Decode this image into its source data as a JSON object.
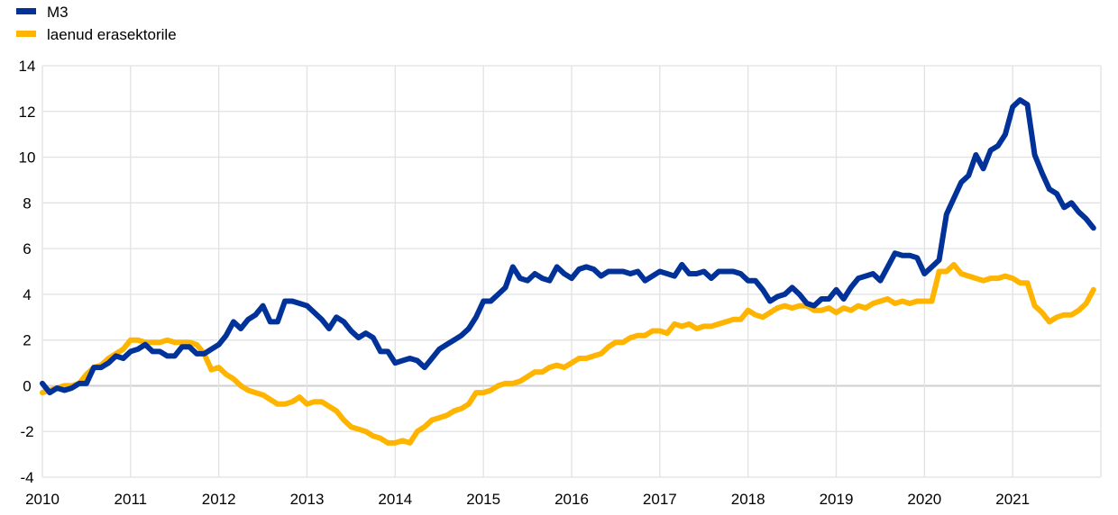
{
  "chart_data": {
    "type": "line",
    "title": "",
    "xlabel": "",
    "ylabel": "",
    "ylim": [
      -4,
      14
    ],
    "yticks": [
      "14",
      "12",
      "10",
      "8",
      "6",
      "4",
      "2",
      "0",
      "-2",
      "-4"
    ],
    "xticks": [
      "2010",
      "2011",
      "2012",
      "2013",
      "2014",
      "2015",
      "2016",
      "2017",
      "2018",
      "2019",
      "2020",
      "2021"
    ],
    "xrange": [
      "2010-01",
      "2022-01"
    ],
    "frequency": "monthly",
    "start": "2010-01",
    "grid": true,
    "legend_position": "top-left",
    "series": [
      {
        "name": "M3",
        "color": "#003299",
        "values": [
          0.1,
          -0.3,
          -0.1,
          -0.2,
          -0.1,
          0.1,
          0.1,
          0.8,
          0.8,
          1.0,
          1.3,
          1.2,
          1.5,
          1.6,
          1.8,
          1.5,
          1.5,
          1.3,
          1.3,
          1.7,
          1.7,
          1.4,
          1.4,
          1.6,
          1.8,
          2.2,
          2.8,
          2.5,
          2.9,
          3.1,
          3.5,
          2.8,
          2.8,
          3.7,
          3.7,
          3.6,
          3.5,
          3.2,
          2.9,
          2.5,
          3.0,
          2.8,
          2.4,
          2.1,
          2.3,
          2.1,
          1.5,
          1.5,
          1.0,
          1.1,
          1.2,
          1.1,
          0.8,
          1.2,
          1.6,
          1.8,
          2.0,
          2.2,
          2.5,
          3.0,
          3.7,
          3.7,
          4.0,
          4.3,
          5.2,
          4.7,
          4.6,
          4.9,
          4.7,
          4.6,
          5.2,
          4.9,
          4.7,
          5.1,
          5.2,
          5.1,
          4.8,
          5.0,
          5.0,
          5.0,
          4.9,
          5.0,
          4.6,
          4.8,
          5.0,
          4.9,
          4.8,
          5.3,
          4.9,
          4.9,
          5.0,
          4.7,
          5.0,
          5.0,
          5.0,
          4.9,
          4.6,
          4.6,
          4.2,
          3.7,
          3.9,
          4.0,
          4.3,
          4.0,
          3.6,
          3.5,
          3.8,
          3.8,
          4.2,
          3.8,
          4.3,
          4.7,
          4.8,
          4.9,
          4.6,
          5.2,
          5.8,
          5.7,
          5.7,
          5.6,
          4.9,
          5.2,
          5.5,
          7.5,
          8.2,
          8.9,
          9.2,
          10.1,
          9.5,
          10.3,
          10.5,
          11.0,
          12.2,
          12.5,
          12.3,
          10.1,
          9.3,
          8.6,
          8.4,
          7.8,
          8.0,
          7.6,
          7.3,
          6.9
        ]
      },
      {
        "name": "laenud erasektorile",
        "color": "#FFB400",
        "values": [
          -0.3,
          -0.2,
          -0.1,
          0.0,
          0.0,
          0.1,
          0.5,
          0.8,
          0.9,
          1.2,
          1.4,
          1.6,
          2.0,
          2.0,
          1.9,
          1.9,
          1.9,
          2.0,
          1.9,
          1.9,
          1.9,
          1.8,
          1.4,
          0.7,
          0.8,
          0.5,
          0.3,
          0.0,
          -0.2,
          -0.3,
          -0.4,
          -0.6,
          -0.8,
          -0.8,
          -0.7,
          -0.5,
          -0.8,
          -0.7,
          -0.7,
          -0.9,
          -1.1,
          -1.5,
          -1.8,
          -1.9,
          -2.0,
          -2.2,
          -2.3,
          -2.5,
          -2.5,
          -2.4,
          -2.5,
          -2.0,
          -1.8,
          -1.5,
          -1.4,
          -1.3,
          -1.1,
          -1.0,
          -0.8,
          -0.3,
          -0.3,
          -0.2,
          0.0,
          0.1,
          0.1,
          0.2,
          0.4,
          0.6,
          0.6,
          0.8,
          0.9,
          0.8,
          1.0,
          1.2,
          1.2,
          1.3,
          1.4,
          1.7,
          1.9,
          1.9,
          2.1,
          2.2,
          2.2,
          2.4,
          2.4,
          2.3,
          2.7,
          2.6,
          2.7,
          2.5,
          2.6,
          2.6,
          2.7,
          2.8,
          2.9,
          2.9,
          3.3,
          3.1,
          3.0,
          3.2,
          3.4,
          3.5,
          3.4,
          3.5,
          3.5,
          3.3,
          3.3,
          3.4,
          3.2,
          3.4,
          3.3,
          3.5,
          3.4,
          3.6,
          3.7,
          3.8,
          3.6,
          3.7,
          3.6,
          3.7,
          3.7,
          3.7,
          5.0,
          5.0,
          5.3,
          4.9,
          4.8,
          4.7,
          4.6,
          4.7,
          4.7,
          4.8,
          4.7,
          4.5,
          4.5,
          3.5,
          3.2,
          2.8,
          3.0,
          3.1,
          3.1,
          3.3,
          3.6,
          4.2
        ]
      }
    ]
  }
}
